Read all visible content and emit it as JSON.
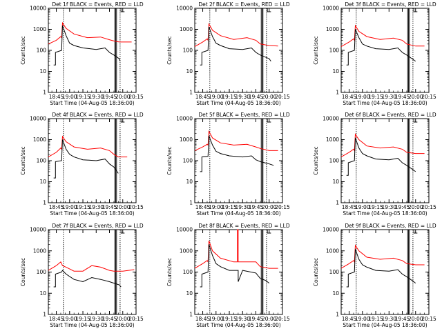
{
  "figure": {
    "xlabel": "Start Time (04-Aug-05 18:36:00)",
    "ylabel": "Counts/sec",
    "xticks": [
      "18:45",
      "19:00",
      "19:15",
      "19:30",
      "19:45",
      "20:00",
      "20:15"
    ],
    "yticks": [
      "1",
      "10",
      "100",
      "1000",
      "10000"
    ],
    "colors": {
      "black_series": "#000000",
      "red_series": "#ff0000"
    }
  },
  "chart_data": [
    {
      "type": "line",
      "title": "Det 1f BLACK = Events, RED = LLD",
      "xlabel": "Start Time (04-Aug-05 18:36:00)",
      "ylabel": "Counts/sec",
      "xlim": [
        "18:36",
        "20:15"
      ],
      "ylim": [
        1,
        10000
      ],
      "yscale": "log",
      "series": [
        {
          "name": "Events",
          "color": "#000000",
          "x": [
            "18:42",
            "18:44",
            "18:44",
            "18:51",
            "18:52",
            "18:56",
            "19:00",
            "19:05",
            "19:15",
            "19:30",
            "19:40",
            "19:45",
            "19:50",
            "19:56",
            "19:57"
          ],
          "values": [
            20,
            20,
            80,
            100,
            1500,
            500,
            220,
            170,
            130,
            110,
            130,
            80,
            60,
            40,
            30
          ]
        },
        {
          "name": "LLD",
          "color": "#ff0000",
          "x": [
            "18:36",
            "18:45",
            "18:50",
            "18:51",
            "18:52",
            "18:56",
            "19:05",
            "19:20",
            "19:35",
            "19:45",
            "19:50",
            "19:56",
            "20:00",
            "20:10"
          ],
          "values": [
            200,
            300,
            450,
            400,
            2000,
            1100,
            600,
            400,
            430,
            320,
            280,
            250,
            250,
            250
          ]
        }
      ]
    },
    {
      "type": "line",
      "title": "Det 2f BLACK = Events, RED = LLD",
      "xlabel": "Start Time (04-Aug-05 18:36:00)",
      "ylabel": "Counts/sec",
      "xlim": [
        "18:36",
        "20:15"
      ],
      "ylim": [
        1,
        10000
      ],
      "yscale": "log",
      "series": [
        {
          "name": "Events",
          "color": "#000000",
          "x": [
            "18:42",
            "18:44",
            "18:44",
            "18:51",
            "18:52",
            "18:56",
            "19:00",
            "19:05",
            "19:15",
            "19:30",
            "19:40",
            "19:45",
            "19:50",
            "20:00",
            "20:02"
          ],
          "values": [
            20,
            20,
            80,
            100,
            1300,
            450,
            220,
            170,
            120,
            110,
            130,
            80,
            60,
            40,
            30
          ]
        },
        {
          "name": "LLD",
          "color": "#ff0000",
          "x": [
            "18:36",
            "18:45",
            "18:50",
            "18:51",
            "18:52",
            "18:56",
            "19:05",
            "19:20",
            "19:35",
            "19:45",
            "19:50",
            "20:00",
            "20:10"
          ],
          "values": [
            150,
            250,
            350,
            300,
            1800,
            900,
            500,
            330,
            400,
            300,
            200,
            170,
            160
          ]
        }
      ]
    },
    {
      "type": "line",
      "title": "Det 3f BLACK = Events, RED = LLD",
      "xlabel": "Start Time (04-Aug-05 18:36:00)",
      "ylabel": "Counts/sec",
      "xlim": [
        "18:36",
        "20:15"
      ],
      "ylim": [
        1,
        10000
      ],
      "yscale": "log",
      "series": [
        {
          "name": "Events",
          "color": "#000000",
          "x": [
            "18:42",
            "18:44",
            "18:44",
            "18:51",
            "18:52",
            "18:56",
            "19:00",
            "19:05",
            "19:15",
            "19:30",
            "19:40",
            "19:45",
            "19:50",
            "19:56",
            "20:00"
          ],
          "values": [
            20,
            20,
            80,
            100,
            1000,
            400,
            200,
            160,
            120,
            110,
            130,
            80,
            60,
            40,
            30
          ]
        },
        {
          "name": "LLD",
          "color": "#ff0000",
          "x": [
            "18:36",
            "18:45",
            "18:50",
            "18:51",
            "18:52",
            "18:56",
            "19:05",
            "19:20",
            "19:35",
            "19:45",
            "19:50",
            "20:00",
            "20:10"
          ],
          "values": [
            150,
            250,
            350,
            300,
            1500,
            800,
            450,
            330,
            380,
            300,
            200,
            160,
            160
          ]
        }
      ]
    },
    {
      "type": "line",
      "title": "Det 4f BLACK = Events, RED = LLD",
      "xlabel": "Start Time (04-Aug-05 18:36:00)",
      "ylabel": "Counts/sec",
      "xlim": [
        "18:36",
        "20:15"
      ],
      "ylim": [
        1,
        10000
      ],
      "yscale": "log",
      "series": [
        {
          "name": "Events",
          "color": "#000000",
          "x": [
            "18:42",
            "18:44",
            "18:44",
            "18:51",
            "18:52",
            "18:56",
            "19:00",
            "19:05",
            "19:15",
            "19:30",
            "19:40",
            "19:45",
            "19:50",
            "19:55"
          ],
          "values": [
            15,
            15,
            90,
            100,
            1000,
            350,
            200,
            150,
            110,
            100,
            120,
            70,
            50,
            25
          ]
        },
        {
          "name": "LLD",
          "color": "#ff0000",
          "x": [
            "18:36",
            "18:45",
            "18:50",
            "18:51",
            "18:52",
            "18:56",
            "19:05",
            "19:20",
            "19:35",
            "19:45",
            "19:50",
            "19:55",
            "20:05"
          ],
          "values": [
            150,
            250,
            400,
            350,
            1400,
            800,
            450,
            350,
            400,
            300,
            200,
            150,
            150
          ]
        }
      ]
    },
    {
      "type": "line",
      "title": "Det 5f BLACK = Events, RED = LLD",
      "xlabel": "Start Time (04-Aug-05 18:36:00)",
      "ylabel": "Counts/sec",
      "xlim": [
        "18:36",
        "20:15"
      ],
      "ylim": [
        1,
        10000
      ],
      "yscale": "log",
      "series": [
        {
          "name": "Events",
          "color": "#000000",
          "x": [
            "18:42",
            "18:44",
            "18:44",
            "18:51",
            "18:52",
            "18:56",
            "19:00",
            "19:05",
            "19:15",
            "19:30",
            "19:40",
            "19:45",
            "19:50",
            "20:00",
            "20:05"
          ],
          "values": [
            30,
            30,
            150,
            160,
            1500,
            550,
            280,
            220,
            170,
            150,
            170,
            110,
            90,
            70,
            60
          ]
        },
        {
          "name": "LLD",
          "color": "#ff0000",
          "x": [
            "18:36",
            "18:45",
            "18:50",
            "18:51",
            "18:52",
            "18:56",
            "19:05",
            "19:20",
            "19:35",
            "19:45",
            "19:50",
            "20:00",
            "20:10"
          ],
          "values": [
            300,
            450,
            600,
            550,
            2500,
            1200,
            700,
            550,
            600,
            450,
            380,
            300,
            300
          ]
        }
      ]
    },
    {
      "type": "line",
      "title": "Det 6f BLACK = Events, RED = LLD",
      "xlabel": "Start Time (04-Aug-05 18:36:00)",
      "ylabel": "Counts/sec",
      "xlim": [
        "18:36",
        "20:15"
      ],
      "ylim": [
        1,
        10000
      ],
      "yscale": "log",
      "series": [
        {
          "name": "Events",
          "color": "#000000",
          "x": [
            "18:42",
            "18:44",
            "18:44",
            "18:51",
            "18:52",
            "18:56",
            "19:00",
            "19:05",
            "19:15",
            "19:30",
            "19:40",
            "19:45",
            "19:50",
            "19:56",
            "20:00"
          ],
          "values": [
            20,
            20,
            80,
            100,
            1200,
            400,
            220,
            170,
            120,
            110,
            130,
            80,
            60,
            40,
            30
          ]
        },
        {
          "name": "LLD",
          "color": "#ff0000",
          "x": [
            "18:36",
            "18:45",
            "18:50",
            "18:51",
            "18:52",
            "18:56",
            "19:05",
            "19:20",
            "19:35",
            "19:45",
            "19:50",
            "20:00",
            "20:10"
          ],
          "values": [
            150,
            250,
            350,
            300,
            1800,
            1000,
            500,
            400,
            450,
            350,
            250,
            220,
            220
          ]
        }
      ]
    },
    {
      "type": "line",
      "title": "Det 7f BLACK = Events, RED = LLD",
      "xlabel": "Start Time (04-Aug-05 18:36:00)",
      "ylabel": "Counts/sec",
      "xlim": [
        "18:36",
        "20:15"
      ],
      "ylim": [
        1,
        10000
      ],
      "yscale": "log",
      "series": [
        {
          "name": "Events",
          "color": "#000000",
          "x": [
            "18:42",
            "18:44",
            "18:44",
            "18:51",
            "18:52",
            "18:56",
            "19:05",
            "19:15",
            "19:25",
            "19:35",
            "19:45",
            "19:50",
            "19:56",
            "19:58"
          ],
          "values": [
            20,
            20,
            80,
            100,
            120,
            80,
            45,
            35,
            55,
            45,
            35,
            30,
            25,
            20
          ]
        },
        {
          "name": "LLD",
          "color": "#ff0000",
          "x": [
            "18:36",
            "18:45",
            "18:50",
            "18:51",
            "18:52",
            "18:56",
            "19:05",
            "19:15",
            "19:25",
            "19:35",
            "19:45",
            "19:50",
            "20:00",
            "20:13"
          ],
          "values": [
            120,
            200,
            300,
            250,
            200,
            170,
            110,
            110,
            200,
            170,
            120,
            110,
            110,
            130
          ]
        }
      ]
    },
    {
      "type": "line",
      "title": "Det 8f BLACK = Events, RED = LLD",
      "xlabel": "Start Time (04-Aug-05 18:36:00)",
      "ylabel": "Counts/sec",
      "xlim": [
        "18:36",
        "20:15"
      ],
      "ylim": [
        1,
        10000
      ],
      "yscale": "log",
      "series": [
        {
          "name": "Events",
          "color": "#000000",
          "x": [
            "18:42",
            "18:44",
            "18:44",
            "18:51",
            "18:52",
            "18:56",
            "19:00",
            "19:05",
            "19:15",
            "19:25",
            "19:25",
            "19:30",
            "19:45",
            "19:50",
            "19:56",
            "20:00"
          ],
          "values": [
            20,
            20,
            80,
            100,
            2000,
            600,
            250,
            180,
            120,
            120,
            35,
            120,
            90,
            50,
            40,
            30
          ]
        },
        {
          "name": "LLD",
          "color": "#ff0000",
          "x": [
            "18:36",
            "18:45",
            "18:50",
            "18:51",
            "18:52",
            "18:56",
            "19:05",
            "19:20",
            "19:24",
            "19:24",
            "19:25",
            "19:25",
            "19:45",
            "19:50",
            "20:00",
            "20:10"
          ],
          "values": [
            150,
            250,
            350,
            300,
            3000,
            1000,
            450,
            300,
            300,
            10000,
            10000,
            300,
            300,
            180,
            150,
            150
          ]
        }
      ]
    },
    {
      "type": "line",
      "title": "Det 9f BLACK = Events, RED = LLD",
      "xlabel": "Start Time (04-Aug-05 18:36:00)",
      "ylabel": "Counts/sec",
      "xlim": [
        "18:36",
        "20:15"
      ],
      "ylim": [
        1,
        10000
      ],
      "yscale": "log",
      "series": [
        {
          "name": "Events",
          "color": "#000000",
          "x": [
            "18:42",
            "18:44",
            "18:44",
            "18:51",
            "18:52",
            "18:56",
            "19:00",
            "19:05",
            "19:15",
            "19:30",
            "19:40",
            "19:45",
            "19:50",
            "19:56",
            "20:00"
          ],
          "values": [
            20,
            20,
            80,
            100,
            1200,
            400,
            220,
            170,
            120,
            110,
            130,
            80,
            60,
            40,
            30
          ]
        },
        {
          "name": "LLD",
          "color": "#ff0000",
          "x": [
            "18:36",
            "18:45",
            "18:50",
            "18:51",
            "18:52",
            "18:56",
            "19:05",
            "19:20",
            "19:35",
            "19:45",
            "19:50",
            "20:00",
            "20:10"
          ],
          "values": [
            150,
            250,
            350,
            300,
            1800,
            1000,
            500,
            400,
            450,
            350,
            250,
            220,
            220
          ]
        }
      ]
    }
  ]
}
